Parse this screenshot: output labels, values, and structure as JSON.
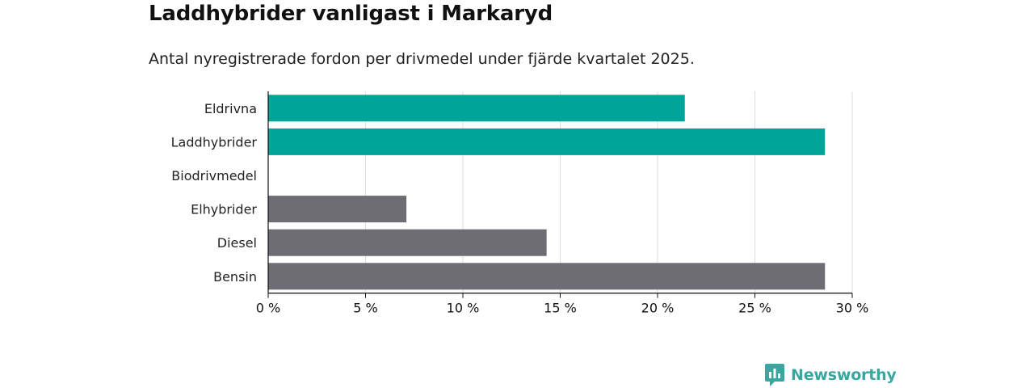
{
  "chart_data": {
    "type": "bar",
    "orientation": "horizontal",
    "title": "Laddhybrider vanligast i Markaryd",
    "subtitle": "Antal nyregistrerade fordon per drivmedel under fjärde kvartalet 2025.",
    "xlabel": "",
    "ylabel": "",
    "xlim": [
      0,
      30
    ],
    "x_ticks": [
      0,
      5,
      10,
      15,
      20,
      25,
      30
    ],
    "x_tick_labels": [
      "0 %",
      "5 %",
      "10 %",
      "15 %",
      "20 %",
      "25 %",
      "30 %"
    ],
    "grid": true,
    "categories": [
      "Eldrivna",
      "Laddhybrider",
      "Biodrivmedel",
      "Elhybrider",
      "Diesel",
      "Bensin"
    ],
    "values": [
      21.4,
      28.6,
      0,
      7.1,
      14.3,
      28.6
    ],
    "bar_colors": [
      "#00a499",
      "#00a499",
      "#6e6d74",
      "#6e6d74",
      "#6e6d74",
      "#6e6d74"
    ]
  },
  "colors": {
    "highlight": "#00a499",
    "neutral": "#6e6d74",
    "grid": "#dddddd",
    "axis": "#111111",
    "brand": "#3aa6a0"
  },
  "brand": {
    "name": "Newsworthy",
    "icon": "newsworthy-logo-icon"
  }
}
